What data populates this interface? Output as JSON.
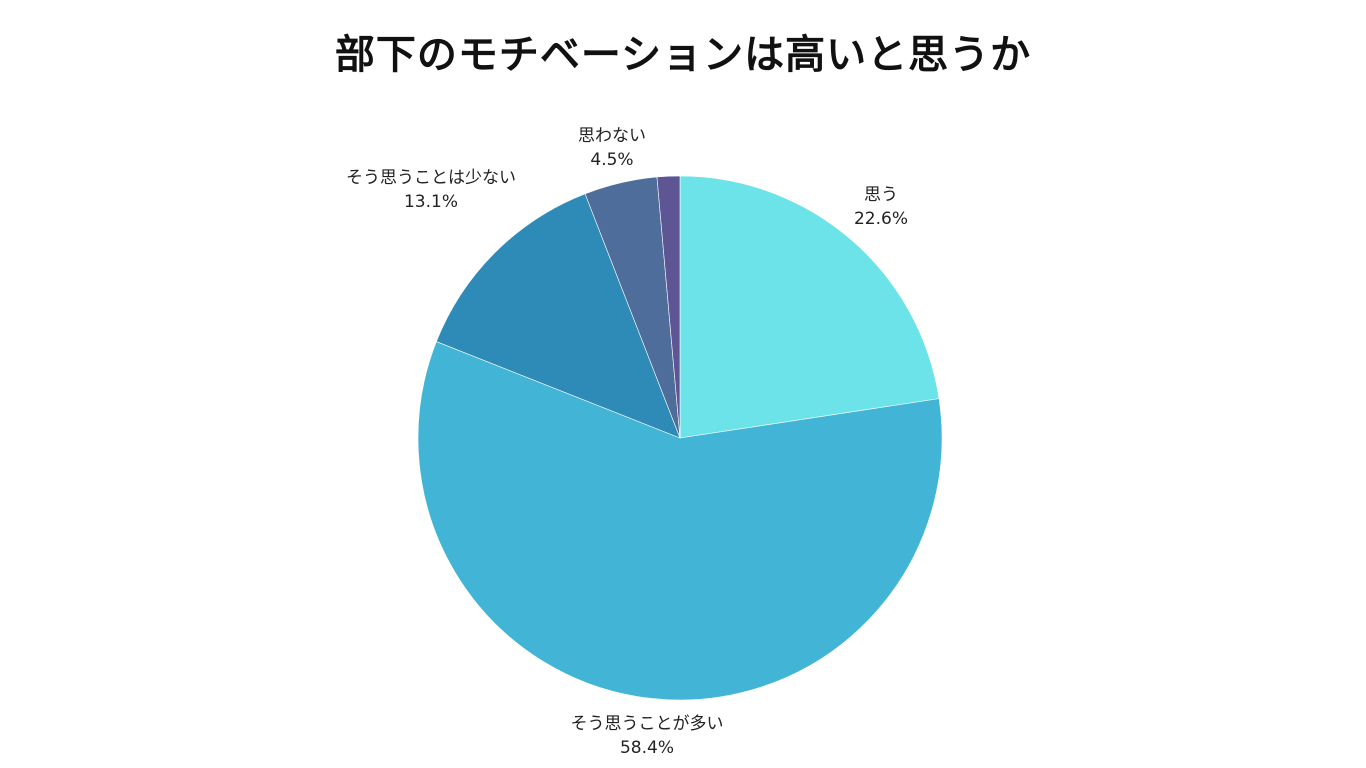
{
  "chart_data": {
    "type": "pie",
    "title": "部下のモチベーションは高いと思うか",
    "categories": [
      "思う",
      "そう思うことが多い",
      "そう思うことは少ない",
      "思わない",
      ""
    ],
    "values": [
      22.6,
      58.4,
      13.1,
      4.5,
      1.4
    ],
    "value_labels": [
      "22.6%",
      "58.4%",
      "13.1%",
      "4.5%",
      ""
    ],
    "colors": [
      "#6ce3e8",
      "#42b5d6",
      "#2e8bb8",
      "#4f6d9a",
      "#5e5595"
    ],
    "start_angle": "top (12 o'clock)",
    "direction": "clockwise",
    "legend": "none (labels placed outside slices)"
  },
  "title": "部下のモチベーションは高いと思うか",
  "labels": [
    {
      "name": "思う",
      "pct": "22.6%"
    },
    {
      "name": "そう思うことが多い",
      "pct": "58.4%"
    },
    {
      "name": "そう思うことは少ない",
      "pct": "13.1%"
    },
    {
      "name": "思わない",
      "pct": "4.5%"
    }
  ]
}
